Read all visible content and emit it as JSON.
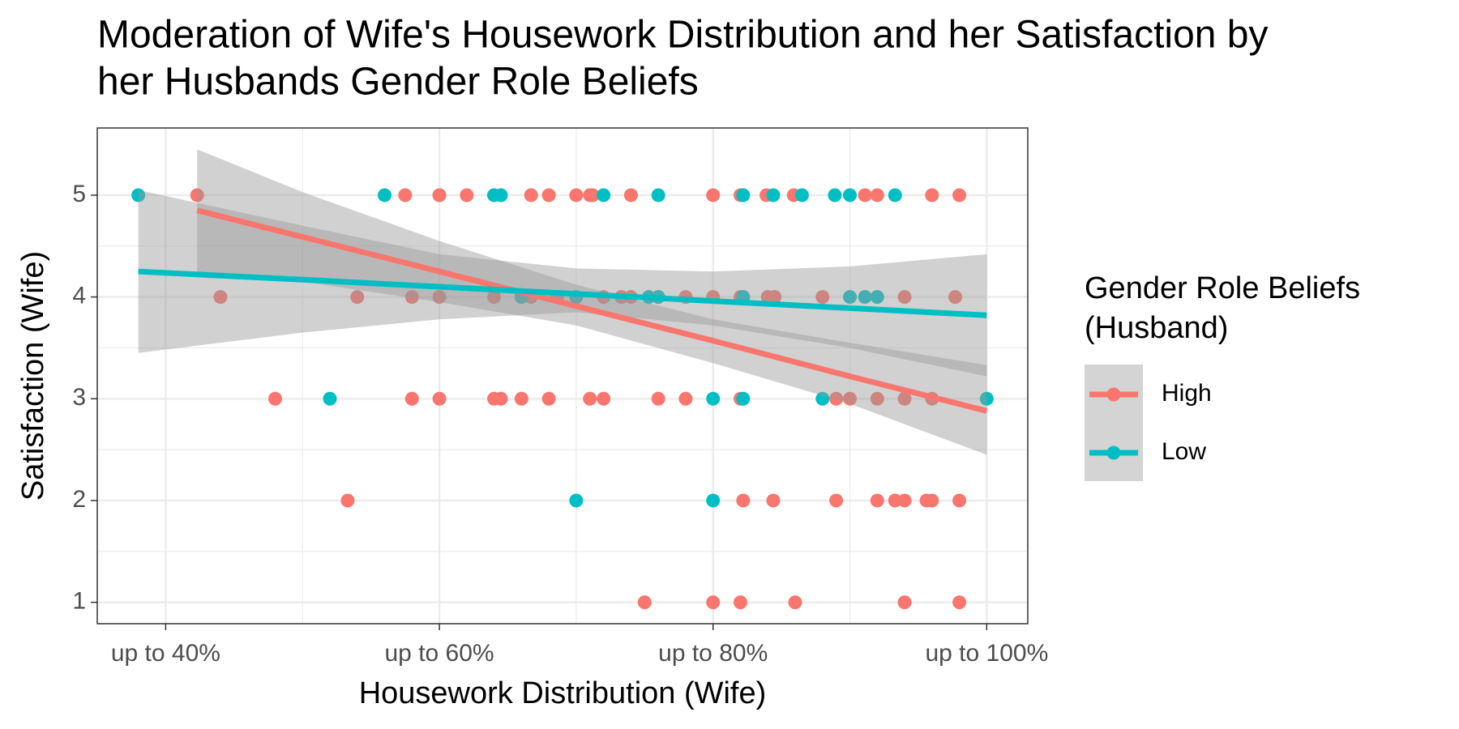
{
  "chart_data": {
    "type": "scatter",
    "title": [
      "Moderation of Wife's Housework Distribution and her Satisfaction by",
      "her Husbands Gender Role Beliefs"
    ],
    "x_label": "Housework Distribution (Wife)",
    "y_label": "Satisfaction (Wife)",
    "legend_title": [
      "Gender Role Beliefs",
      "(Husband)"
    ],
    "legend_position": "right",
    "grid": true,
    "xlim": [
      35,
      103
    ],
    "ylim": [
      0.79,
      5.66
    ],
    "xticks": [
      {
        "value": 40,
        "label": "up to 40%"
      },
      {
        "value": 60,
        "label": "up to 60%"
      },
      {
        "value": 80,
        "label": "up to 80%"
      },
      {
        "value": 100,
        "label": "up to 100%"
      }
    ],
    "yticks": [
      1,
      2,
      3,
      4,
      5
    ],
    "series": [
      {
        "name": "High",
        "color": "#F8766D",
        "x": [
          42.3,
          57.5,
          60,
          60,
          62,
          64,
          66.7,
          68,
          70,
          71,
          71.2,
          74,
          80,
          82,
          83.9,
          85.9,
          91.1,
          92,
          96,
          98,
          44,
          54,
          58,
          60,
          64,
          66.7,
          68.6,
          72,
          73.3,
          74,
          76,
          78,
          80,
          82,
          84,
          84.5,
          88,
          94,
          97.7,
          48,
          58,
          60,
          64,
          64.5,
          66,
          68,
          71,
          72,
          76,
          78,
          82,
          89,
          90,
          92,
          94,
          96,
          53.3,
          82.2,
          84.4,
          89,
          92,
          93.3,
          94,
          95.6,
          96,
          98,
          75,
          80,
          82,
          86,
          94,
          98
        ],
        "values": [
          5,
          5,
          5,
          5,
          5,
          5,
          5,
          5,
          5,
          5,
          5,
          5,
          5,
          5,
          5,
          5,
          5,
          5,
          5,
          5,
          4,
          4,
          4,
          4,
          4,
          4,
          4,
          4,
          4,
          4,
          4,
          4,
          4,
          4,
          4,
          4,
          4,
          4,
          4,
          3,
          3,
          3,
          3,
          3,
          3,
          3,
          3,
          3,
          3,
          3,
          3,
          3,
          3,
          3,
          3,
          3,
          2,
          2,
          2,
          2,
          2,
          2,
          2,
          2,
          2,
          2,
          1,
          1,
          1,
          1,
          1,
          1
        ],
        "fit": {
          "x": [
            42.3,
            50,
            60,
            70,
            80,
            90,
            100
          ],
          "values": [
            4.85,
            4.59,
            4.25,
            3.91,
            3.57,
            3.22,
            2.88
          ],
          "lower": [
            4.25,
            4.15,
            3.95,
            3.72,
            3.35,
            2.95,
            2.45
          ],
          "upper": [
            5.45,
            5.03,
            4.55,
            4.12,
            3.78,
            3.55,
            3.33
          ]
        }
      },
      {
        "name": "Low",
        "color": "#00BFC4",
        "x": [
          38,
          56,
          64,
          64.5,
          72,
          76,
          82.2,
          84.4,
          86.5,
          88.9,
          90,
          93.3,
          66,
          70,
          75.3,
          76,
          82.2,
          90,
          91.1,
          92,
          52,
          80,
          82.2,
          88,
          100,
          70,
          80
        ],
        "values": [
          5,
          5,
          5,
          5,
          5,
          5,
          5,
          5,
          5,
          5,
          5,
          5,
          4,
          4,
          4,
          4,
          4,
          4,
          4,
          4,
          3,
          3,
          3,
          3,
          3,
          2,
          2
        ],
        "fit": {
          "x": [
            38,
            50,
            60,
            70,
            80,
            90,
            100
          ],
          "values": [
            4.25,
            4.17,
            4.1,
            4.03,
            3.96,
            3.89,
            3.82
          ],
          "lower": [
            3.45,
            3.65,
            3.78,
            3.85,
            3.72,
            3.5,
            3.22
          ],
          "upper": [
            5.05,
            4.7,
            4.42,
            4.28,
            4.25,
            4.3,
            4.42
          ]
        }
      }
    ]
  }
}
